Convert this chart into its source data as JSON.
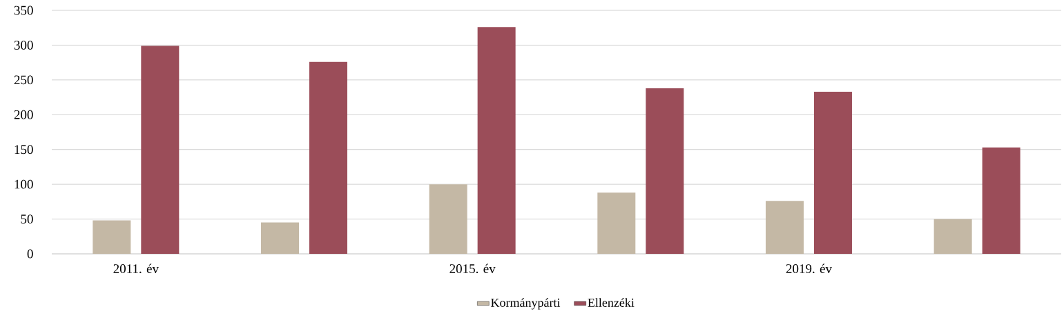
{
  "chart_data": {
    "type": "bar",
    "categories": [
      "2011. év",
      null,
      "2015. év",
      null,
      "2019. év",
      null
    ],
    "series": [
      {
        "name": "Kormánypárti",
        "color": "#c4b8a5",
        "values": [
          48,
          45,
          100,
          88,
          76,
          50
        ]
      },
      {
        "name": "Ellenzéki",
        "color": "#9b4d59",
        "values": [
          299,
          276,
          326,
          238,
          233,
          153
        ]
      }
    ],
    "ylim": [
      0,
      350
    ],
    "yticks": [
      0,
      50,
      100,
      150,
      200,
      250,
      300,
      350
    ],
    "grid": "y",
    "legend": "bottom"
  }
}
